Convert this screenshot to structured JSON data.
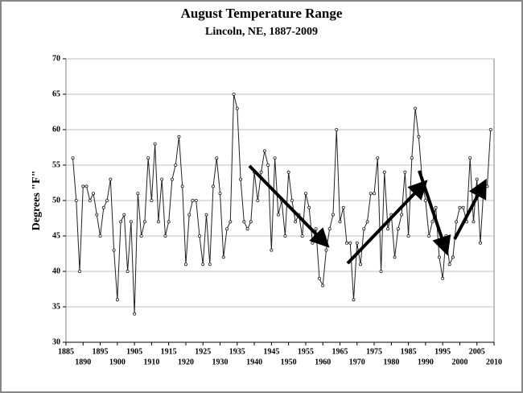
{
  "chart_data": {
    "type": "line",
    "title": "August Temperature Range",
    "subtitle": "Lincoln, NE, 1887-2009",
    "y_label": "Degrees \"F\"",
    "color": "#222222",
    "grid": true,
    "xlim": [
      1885,
      2010
    ],
    "xticks": [
      1885,
      1890,
      1895,
      1900,
      1905,
      1910,
      1915,
      1920,
      1925,
      1930,
      1935,
      1940,
      1945,
      1950,
      1955,
      1960,
      1965,
      1970,
      1975,
      1980,
      1985,
      1990,
      1995,
      2000,
      2005,
      2010
    ],
    "ylim": [
      30,
      70
    ],
    "yticks": [
      30,
      35,
      40,
      45,
      50,
      55,
      60,
      65,
      70
    ],
    "x": [
      1887,
      1888,
      1889,
      1890,
      1891,
      1892,
      1893,
      1894,
      1895,
      1896,
      1897,
      1898,
      1899,
      1900,
      1901,
      1902,
      1903,
      1904,
      1905,
      1906,
      1907,
      1908,
      1909,
      1910,
      1911,
      1912,
      1913,
      1914,
      1915,
      1916,
      1917,
      1918,
      1919,
      1920,
      1921,
      1922,
      1923,
      1924,
      1925,
      1926,
      1927,
      1928,
      1929,
      1930,
      1931,
      1932,
      1933,
      1934,
      1935,
      1936,
      1937,
      1938,
      1939,
      1940,
      1941,
      1942,
      1943,
      1944,
      1945,
      1946,
      1947,
      1948,
      1949,
      1950,
      1951,
      1952,
      1953,
      1954,
      1955,
      1956,
      1957,
      1958,
      1959,
      1960,
      1961,
      1962,
      1963,
      1964,
      1965,
      1966,
      1967,
      1968,
      1969,
      1970,
      1971,
      1972,
      1973,
      1974,
      1975,
      1976,
      1977,
      1978,
      1979,
      1980,
      1981,
      1982,
      1983,
      1984,
      1985,
      1986,
      1987,
      1988,
      1989,
      1990,
      1991,
      1992,
      1993,
      1994,
      1995,
      1996,
      1997,
      1998,
      1999,
      2000,
      2001,
      2002,
      2003,
      2004,
      2005,
      2006,
      2007,
      2008,
      2009
    ],
    "values": [
      56,
      50,
      40,
      52,
      52,
      50,
      51,
      48,
      45,
      49,
      50,
      53,
      43,
      36,
      47,
      48,
      40,
      47,
      34,
      51,
      45,
      47,
      56,
      50,
      58,
      47,
      53,
      45,
      47,
      53,
      55,
      59,
      52,
      41,
      48,
      50,
      50,
      45,
      41,
      48,
      41,
      52,
      56,
      51,
      42,
      46,
      47,
      65,
      63,
      53,
      47,
      46,
      47,
      54,
      50,
      54,
      57,
      55,
      43,
      56,
      48,
      50,
      45,
      54,
      50,
      47,
      48,
      45,
      51,
      49,
      44,
      46,
      39,
      38,
      43,
      46,
      48,
      60,
      47,
      49,
      44,
      44,
      36,
      44,
      41,
      46,
      47,
      51,
      51,
      56,
      40,
      54,
      46,
      48,
      42,
      46,
      48,
      54,
      45,
      56,
      63,
      59,
      53,
      50,
      45,
      47,
      49,
      42,
      39,
      45,
      41,
      42,
      47,
      49,
      49,
      47,
      56,
      47,
      53,
      44,
      52,
      52,
      60
    ]
  }
}
